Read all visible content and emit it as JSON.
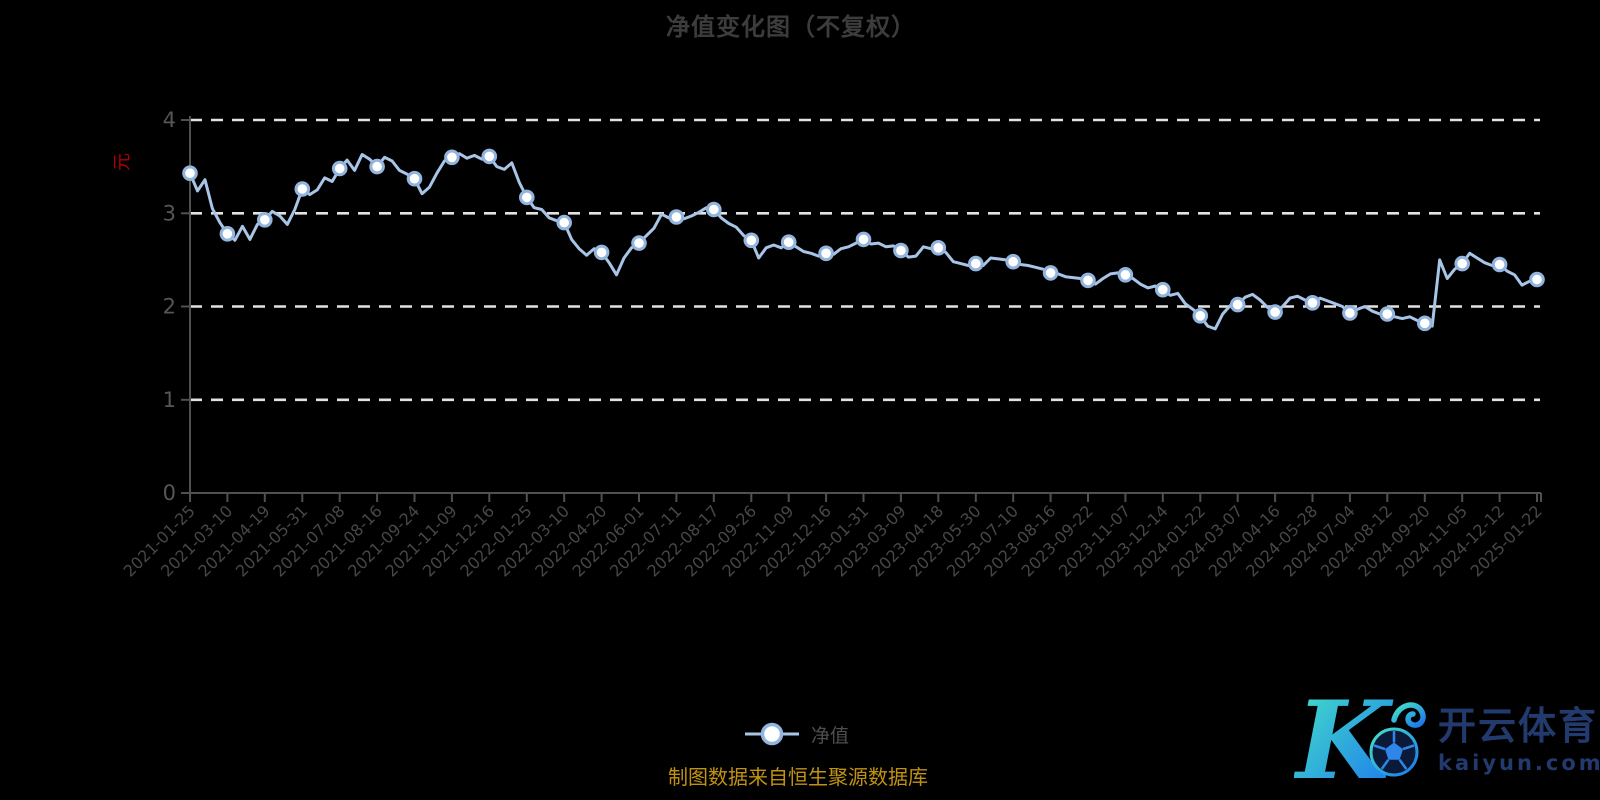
{
  "title": "净值变化图（不复权）",
  "y_axis": {
    "unit": "元",
    "tick_labels": [
      "0",
      "1",
      "2",
      "3",
      "4"
    ]
  },
  "legend": {
    "label": "净值"
  },
  "footer": {
    "source_note": "制图数据来自恒生聚源数据库"
  },
  "logo": {
    "brand": "开云体育",
    "domain_text": "kaiyun.com",
    "mark_letter": "K"
  },
  "colors": {
    "background": "#000000",
    "title_text": "#3c3c3c",
    "axis_line": "#505050",
    "x_label_text": "#474747",
    "y_label_text": "#565656",
    "grid_line": "#e2e2e2",
    "series_line": "#a8c4e6",
    "marker_fill": "#ffffff",
    "marker_stroke": "#92b4dd",
    "unit_text": "#b00000",
    "footer_text": "#c19212",
    "logo_navy": "#223a6d",
    "logo_gradient_start": "#45e6c6",
    "logo_gradient_end": "#1b74ee"
  },
  "chart_data": {
    "type": "line",
    "title": "净值变化图（不复权）",
    "xlabel": "",
    "ylabel": "元",
    "ylim": [
      0,
      4
    ],
    "y_ticks": [
      0,
      1,
      2,
      3,
      4
    ],
    "grid": "horizontal-dashed-white",
    "legend_position": "bottom-center",
    "series": [
      {
        "name": "净值",
        "x_tick_labels": [
          "2021-01-25",
          "2021-03-10",
          "2021-04-19",
          "2021-05-31",
          "2021-07-08",
          "2021-08-16",
          "2021-09-24",
          "2021-11-09",
          "2021-12-16",
          "2022-01-25",
          "2022-03-10",
          "2022-04-20",
          "2022-06-01",
          "2022-07-11",
          "2022-08-17",
          "2022-09-26",
          "2022-11-09",
          "2022-12-16",
          "2023-01-31",
          "2023-03-09",
          "2023-04-18",
          "2023-05-30",
          "2023-07-10",
          "2023-08-16",
          "2023-09-22",
          "2023-11-07",
          "2023-12-14",
          "2024-01-22",
          "2024-03-07",
          "2024-04-16",
          "2024-05-28",
          "2024-07-04",
          "2024-08-12",
          "2024-09-20",
          "2024-11-05",
          "2024-12-12",
          "2025-01-22"
        ],
        "values_at_ticks": [
          3.43,
          2.78,
          2.93,
          3.26,
          3.48,
          3.5,
          3.37,
          3.6,
          3.61,
          3.17,
          2.9,
          2.58,
          2.68,
          2.96,
          3.04,
          2.71,
          2.69,
          2.57,
          2.72,
          2.6,
          2.63,
          2.46,
          2.48,
          2.36,
          2.28,
          2.34,
          2.18,
          1.9,
          2.02,
          1.94,
          2.04,
          1.93,
          1.92,
          1.82,
          2.46,
          2.45,
          2.29
        ],
        "points_per_tick_interval": 5,
        "dense_values": [
          3.43,
          3.24,
          3.36,
          3.05,
          2.9,
          2.78,
          2.71,
          2.86,
          2.72,
          2.88,
          2.93,
          3.02,
          2.97,
          2.88,
          3.04,
          3.26,
          3.2,
          3.25,
          3.38,
          3.34,
          3.48,
          3.57,
          3.46,
          3.63,
          3.58,
          3.5,
          3.6,
          3.56,
          3.46,
          3.42,
          3.37,
          3.21,
          3.28,
          3.43,
          3.56,
          3.6,
          3.64,
          3.59,
          3.62,
          3.58,
          3.61,
          3.5,
          3.47,
          3.54,
          3.33,
          3.17,
          3.06,
          3.04,
          2.95,
          2.92,
          2.9,
          2.72,
          2.62,
          2.55,
          2.62,
          2.58,
          2.47,
          2.34,
          2.52,
          2.63,
          2.68,
          2.76,
          2.84,
          2.99,
          2.95,
          2.96,
          2.94,
          2.97,
          3.01,
          3.06,
          3.04,
          2.95,
          2.89,
          2.85,
          2.76,
          2.71,
          2.52,
          2.63,
          2.66,
          2.63,
          2.69,
          2.64,
          2.59,
          2.57,
          2.54,
          2.57,
          2.56,
          2.62,
          2.64,
          2.68,
          2.72,
          2.67,
          2.68,
          2.64,
          2.65,
          2.6,
          2.53,
          2.54,
          2.64,
          2.62,
          2.63,
          2.58,
          2.48,
          2.46,
          2.44,
          2.46,
          2.44,
          2.52,
          2.51,
          2.5,
          2.48,
          2.45,
          2.44,
          2.42,
          2.4,
          2.36,
          2.35,
          2.32,
          2.31,
          2.3,
          2.28,
          2.24,
          2.3,
          2.35,
          2.36,
          2.34,
          2.3,
          2.24,
          2.2,
          2.22,
          2.18,
          2.12,
          2.14,
          2.03,
          1.97,
          1.9,
          1.79,
          1.76,
          1.92,
          2.01,
          2.02,
          2.1,
          2.13,
          2.07,
          1.99,
          1.94,
          2.0,
          2.09,
          2.11,
          2.07,
          2.04,
          2.09,
          2.06,
          2.03,
          2.0,
          1.93,
          1.97,
          2.0,
          1.95,
          1.92,
          1.92,
          1.89,
          1.87,
          1.89,
          1.85,
          1.82,
          1.79,
          2.5,
          2.3,
          2.4,
          2.46,
          2.57,
          2.52,
          2.47,
          2.44,
          2.45,
          2.38,
          2.34,
          2.23,
          2.27,
          2.29
        ]
      }
    ]
  }
}
